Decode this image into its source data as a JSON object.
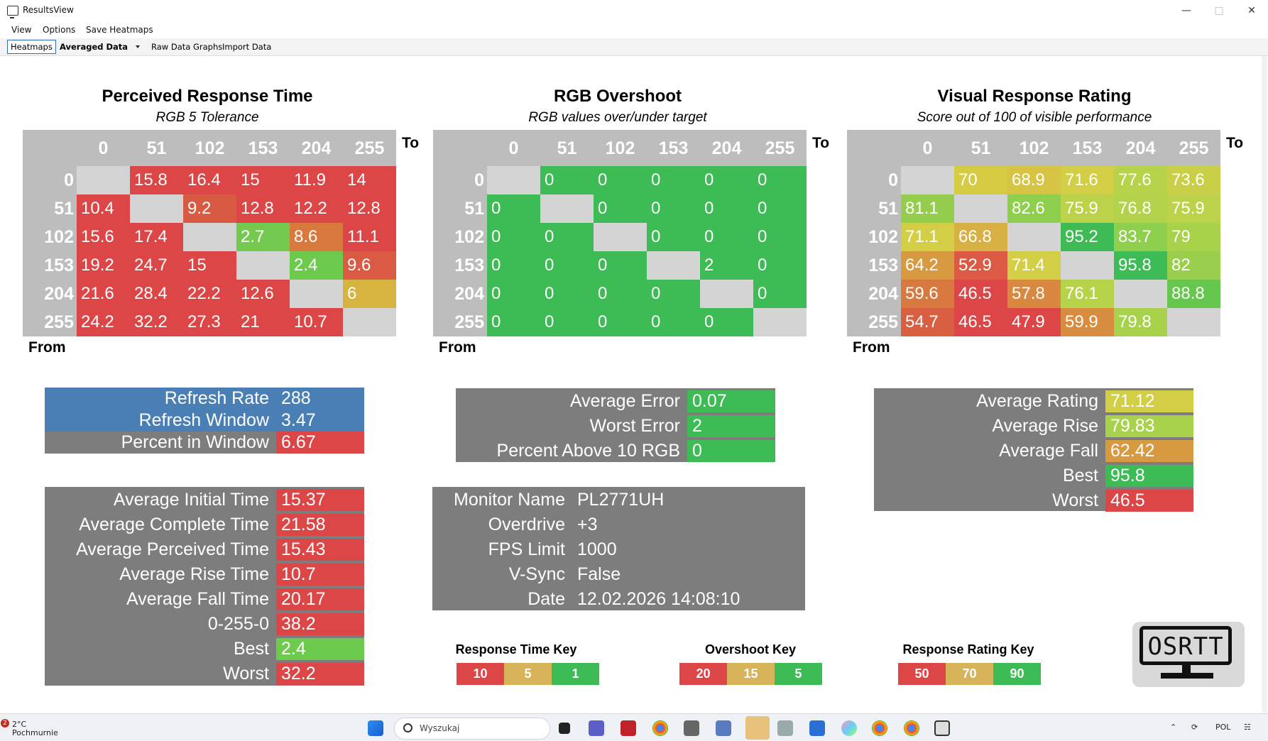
{
  "window": {
    "title": "ResultsView"
  },
  "menu": [
    "View",
    "Options",
    "Save Heatmaps"
  ],
  "toolbar": {
    "heatmaps_tab": "Heatmaps",
    "dropdown_value": "Averaged Data",
    "raw_data_graphs": "Raw Data Graphs",
    "import_data": "Import Data"
  },
  "labels": {
    "to": "To",
    "from": "From"
  },
  "heatmaps": [
    {
      "title": "Perceived Response Time",
      "subtitle": "RGB 5 Tolerance",
      "headers": [
        "0",
        "51",
        "102",
        "153",
        "204",
        "255"
      ],
      "rows": [
        [
          "",
          "15.8",
          "16.4",
          "15",
          "11.9",
          "14"
        ],
        [
          "10.4",
          "",
          "9.2",
          "12.8",
          "12.2",
          "12.8"
        ],
        [
          "15.6",
          "17.4",
          "",
          "2.7",
          "8.6",
          "11.1"
        ],
        [
          "19.2",
          "24.7",
          "15",
          "",
          "2.4",
          "9.6"
        ],
        [
          "21.6",
          "28.4",
          "22.2",
          "12.6",
          "",
          "6"
        ],
        [
          "24.2",
          "32.2",
          "27.3",
          "21",
          "10.7",
          ""
        ]
      ],
      "colors": [
        [
          "#d4d4d4",
          "#dc4646",
          "#dc4646",
          "#dc4646",
          "#dc4646",
          "#dc4646"
        ],
        [
          "#dc4646",
          "#d4d4d4",
          "#d95a42",
          "#dc4646",
          "#dc4646",
          "#dc4646"
        ],
        [
          "#dc4646",
          "#dc4646",
          "#d4d4d4",
          "#74c94f",
          "#d87a40",
          "#dc4646"
        ],
        [
          "#dc4646",
          "#dc4646",
          "#dc4646",
          "#d4d4d4",
          "#6ccb4d",
          "#db5a43"
        ],
        [
          "#dc4646",
          "#dc4646",
          "#dc4646",
          "#dc4646",
          "#d4d4d4",
          "#d7b43f"
        ],
        [
          "#dc4646",
          "#dc4646",
          "#dc4646",
          "#dc4646",
          "#dc4646",
          "#d4d4d4"
        ]
      ]
    },
    {
      "title": "RGB Overshoot",
      "subtitle": "RGB values over/under target",
      "headers": [
        "0",
        "51",
        "102",
        "153",
        "204",
        "255"
      ],
      "rows": [
        [
          "",
          "0",
          "0",
          "0",
          "0",
          "0"
        ],
        [
          "0",
          "",
          "0",
          "0",
          "0",
          "0"
        ],
        [
          "0",
          "0",
          "",
          "0",
          "0",
          "0"
        ],
        [
          "0",
          "0",
          "0",
          "",
          "2",
          "0"
        ],
        [
          "0",
          "0",
          "0",
          "0",
          "",
          "0"
        ],
        [
          "0",
          "0",
          "0",
          "0",
          "0",
          ""
        ]
      ],
      "colors": [
        [
          "#d4d4d4",
          "#3dbb55",
          "#3dbb55",
          "#3dbb55",
          "#3dbb55",
          "#3dbb55"
        ],
        [
          "#3dbb55",
          "#d4d4d4",
          "#3dbb55",
          "#3dbb55",
          "#3dbb55",
          "#3dbb55"
        ],
        [
          "#3dbb55",
          "#3dbb55",
          "#d4d4d4",
          "#3dbb55",
          "#3dbb55",
          "#3dbb55"
        ],
        [
          "#3dbb55",
          "#3dbb55",
          "#3dbb55",
          "#d4d4d4",
          "#3dbb55",
          "#3dbb55"
        ],
        [
          "#3dbb55",
          "#3dbb55",
          "#3dbb55",
          "#3dbb55",
          "#d4d4d4",
          "#3dbb55"
        ],
        [
          "#3dbb55",
          "#3dbb55",
          "#3dbb55",
          "#3dbb55",
          "#3dbb55",
          "#d4d4d4"
        ]
      ]
    },
    {
      "title": "Visual Response Rating",
      "subtitle": "Score out of 100 of visible performance",
      "headers": [
        "0",
        "51",
        "102",
        "153",
        "204",
        "255"
      ],
      "rows": [
        [
          "",
          "70",
          "68.9",
          "71.6",
          "77.6",
          "73.6"
        ],
        [
          "81.1",
          "",
          "82.6",
          "75.9",
          "76.8",
          "75.9"
        ],
        [
          "71.1",
          "66.8",
          "",
          "95.2",
          "83.7",
          "79"
        ],
        [
          "64.2",
          "52.9",
          "71.4",
          "",
          "95.8",
          "82"
        ],
        [
          "59.6",
          "46.5",
          "57.8",
          "76.1",
          "",
          "88.8"
        ],
        [
          "54.7",
          "46.5",
          "47.9",
          "59.9",
          "79.8",
          ""
        ]
      ],
      "colors": [
        [
          "#d4d4d4",
          "#d6cc44",
          "#d8c444",
          "#d2cf46",
          "#b7d34a",
          "#c9d047"
        ],
        [
          "#95ce4e",
          "#d4d4d4",
          "#8ecf4d",
          "#bcd24a",
          "#b2d34b",
          "#bcd24a"
        ],
        [
          "#d2cf46",
          "#d8b043",
          "#d4d4d4",
          "#3fbb55",
          "#8ecf4d",
          "#a9d24b"
        ],
        [
          "#d89a40",
          "#dc5a43",
          "#d2cf46",
          "#d4d4d4",
          "#3dbb55",
          "#99cf4d"
        ],
        [
          "#d87a40",
          "#dc4646",
          "#d9883f",
          "#b7d34a",
          "#d4d4d4",
          "#66c74f"
        ],
        [
          "#d85f42",
          "#dc4646",
          "#dc4646",
          "#d88c3f",
          "#a8d24b",
          "#d4d4d4"
        ]
      ]
    }
  ],
  "refresh_stats": [
    {
      "label": "Refresh Rate",
      "value": "288",
      "label_bg": "#4a7fb5",
      "value_bg": "#4a7fb5"
    },
    {
      "label": "Refresh Window",
      "value": "3.47",
      "label_bg": "#4a7fb5",
      "value_bg": "#4a7fb5"
    },
    {
      "label": "Percent in Window",
      "value": "6.67",
      "label_bg": "#7d7d7d",
      "value_bg": "#dc4646"
    }
  ],
  "response_stats": [
    {
      "label": "Average Initial Time",
      "value": "15.37",
      "value_bg": "#dc4646"
    },
    {
      "label": "Average Complete Time",
      "value": "21.58",
      "value_bg": "#dc4646"
    },
    {
      "label": "Average Perceived Time",
      "value": "15.43",
      "value_bg": "#dc4646"
    },
    {
      "label": "Average Rise Time",
      "value": "10.7",
      "value_bg": "#dc4646"
    },
    {
      "label": "Average Fall Time",
      "value": "20.17",
      "value_bg": "#dc4646"
    },
    {
      "label": "0-255-0",
      "value": "38.2",
      "value_bg": "#dc4646"
    },
    {
      "label": "Best",
      "value": "2.4",
      "value_bg": "#6ccb4d"
    },
    {
      "label": "Worst",
      "value": "32.2",
      "value_bg": "#dc4646"
    }
  ],
  "error_stats": [
    {
      "label": "Average Error",
      "value": "0.07",
      "value_bg": "#3dbb55"
    },
    {
      "label": "Worst Error",
      "value": "2",
      "value_bg": "#3dbb55"
    },
    {
      "label": "Percent Above 10 RGB",
      "value": "0",
      "value_bg": "#3dbb55"
    }
  ],
  "monitor_info": [
    {
      "label": "Monitor Name",
      "value": "PL2771UH"
    },
    {
      "label": "Overdrive",
      "value": "+3"
    },
    {
      "label": "FPS Limit",
      "value": "1000"
    },
    {
      "label": "V-Sync",
      "value": "False"
    },
    {
      "label": "Date",
      "value": "12.02.2026 14:08:10"
    }
  ],
  "rating_stats": [
    {
      "label": "Average Rating",
      "value": "71.12",
      "value_bg": "#d2cf46"
    },
    {
      "label": "Average Rise",
      "value": "79.83",
      "value_bg": "#a8d24b"
    },
    {
      "label": "Average Fall",
      "value": "62.42",
      "value_bg": "#d89a40"
    },
    {
      "label": "Best",
      "value": "95.8",
      "value_bg": "#3dbb55"
    },
    {
      "label": "Worst",
      "value": "46.5",
      "value_bg": "#dc4646"
    }
  ],
  "keys": [
    {
      "title": "Response Time Key",
      "values": [
        "10",
        "5",
        "1"
      ],
      "colors": [
        "#dc4646",
        "#d7b45a",
        "#3dbb55"
      ]
    },
    {
      "title": "Overshoot Key",
      "values": [
        "20",
        "15",
        "5"
      ],
      "colors": [
        "#dc4646",
        "#d7b45a",
        "#3dbb55"
      ]
    },
    {
      "title": "Response Rating Key",
      "values": [
        "50",
        "70",
        "90"
      ],
      "colors": [
        "#dc4646",
        "#d7b45a",
        "#3dbb55"
      ]
    }
  ],
  "logo_text": "OSRTT",
  "taskbar": {
    "weather_badge": "2",
    "weather_temp": "2°C",
    "weather_desc": "Pochmurnie",
    "search_placeholder": "Wyszukaj",
    "language": "POL"
  }
}
